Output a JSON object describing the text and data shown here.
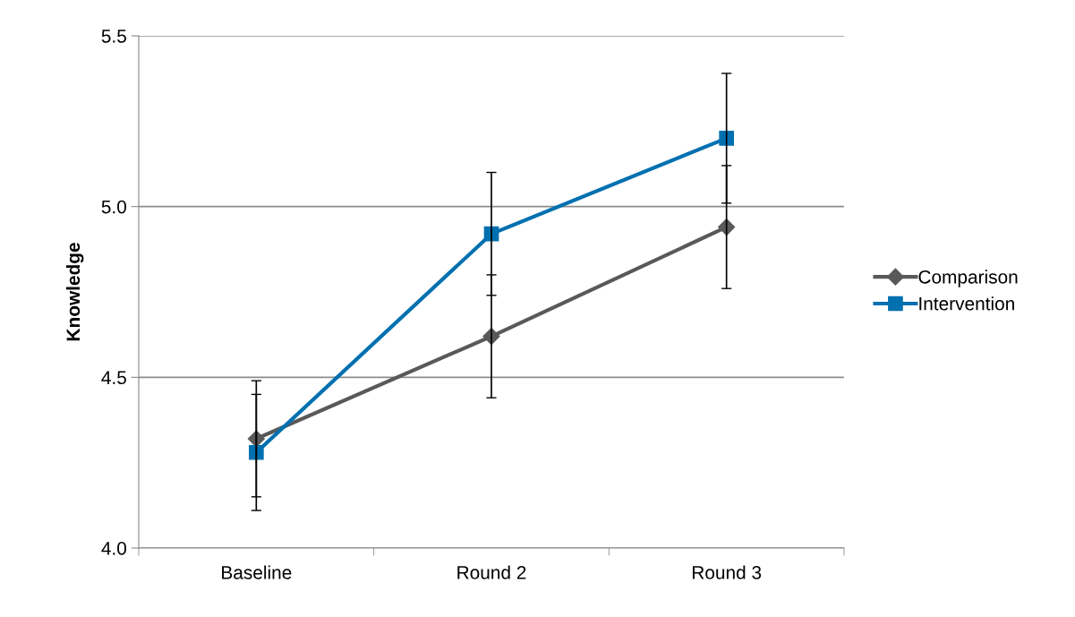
{
  "chart_data": {
    "type": "line",
    "ylabel": "Knowledge",
    "categories": [
      "Baseline",
      "Round 2",
      "Round 3"
    ],
    "series": [
      {
        "name": "Comparison",
        "color": "#595959",
        "values": [
          4.32,
          4.62,
          4.94
        ],
        "errors": [
          0.17,
          0.18,
          0.18
        ],
        "marker": "diamond"
      },
      {
        "name": "Intervention",
        "color": "#0070b0",
        "values": [
          4.28,
          4.92,
          5.2
        ],
        "errors": [
          0.17,
          0.18,
          0.19
        ],
        "marker": "square"
      }
    ],
    "ylim": [
      4.0,
      5.5
    ],
    "yticks": [
      {
        "value": 4.0,
        "label": "4.0"
      },
      {
        "value": 4.5,
        "label": "4.5"
      },
      {
        "value": 5.0,
        "label": "5.0"
      },
      {
        "value": 5.5,
        "label": "5.5"
      }
    ],
    "grid": "y",
    "legend": "right",
    "line_style": "solid"
  }
}
